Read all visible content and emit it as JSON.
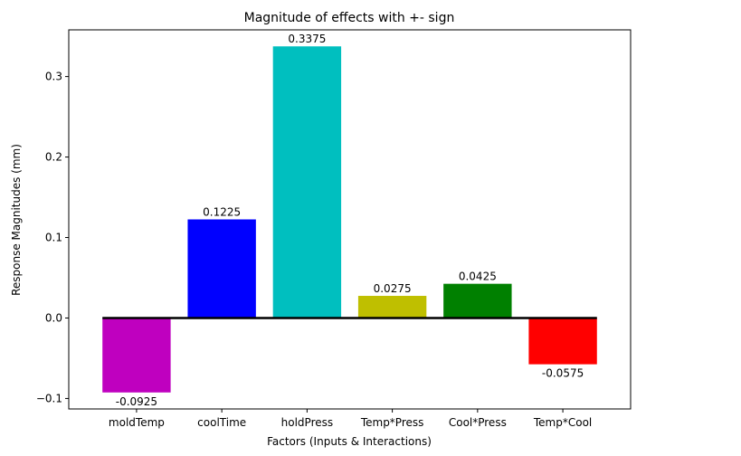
{
  "chart_data": {
    "type": "bar",
    "title": "Magnitude of effects with +- sign",
    "xlabel": "Factors (Inputs & Interactions)",
    "ylabel": "Response Magnitudes (mm)",
    "categories": [
      "moldTemp",
      "coolTime",
      "holdPress",
      "Temp*Press",
      "Cool*Press",
      "Temp*Cool"
    ],
    "values": [
      -0.0925,
      0.1225,
      0.3375,
      0.0275,
      0.0425,
      -0.0575
    ],
    "data_labels": [
      "-0.0925",
      "0.1225",
      "0.3375",
      "0.0275",
      "0.0425",
      "-0.0575"
    ],
    "colors": [
      "#bf00bf",
      "#0000ff",
      "#00bfbf",
      "#bfbf00",
      "#008000",
      "#ff0000"
    ],
    "ylim": [
      -0.113,
      0.358
    ],
    "yticks": [
      -0.1,
      0.0,
      0.1,
      0.2,
      0.3
    ],
    "ytick_labels": [
      "−0.1",
      "0.0",
      "0.1",
      "0.2",
      "0.3"
    ],
    "baseline_color": "#000000",
    "grid": false,
    "legend": "none"
  }
}
